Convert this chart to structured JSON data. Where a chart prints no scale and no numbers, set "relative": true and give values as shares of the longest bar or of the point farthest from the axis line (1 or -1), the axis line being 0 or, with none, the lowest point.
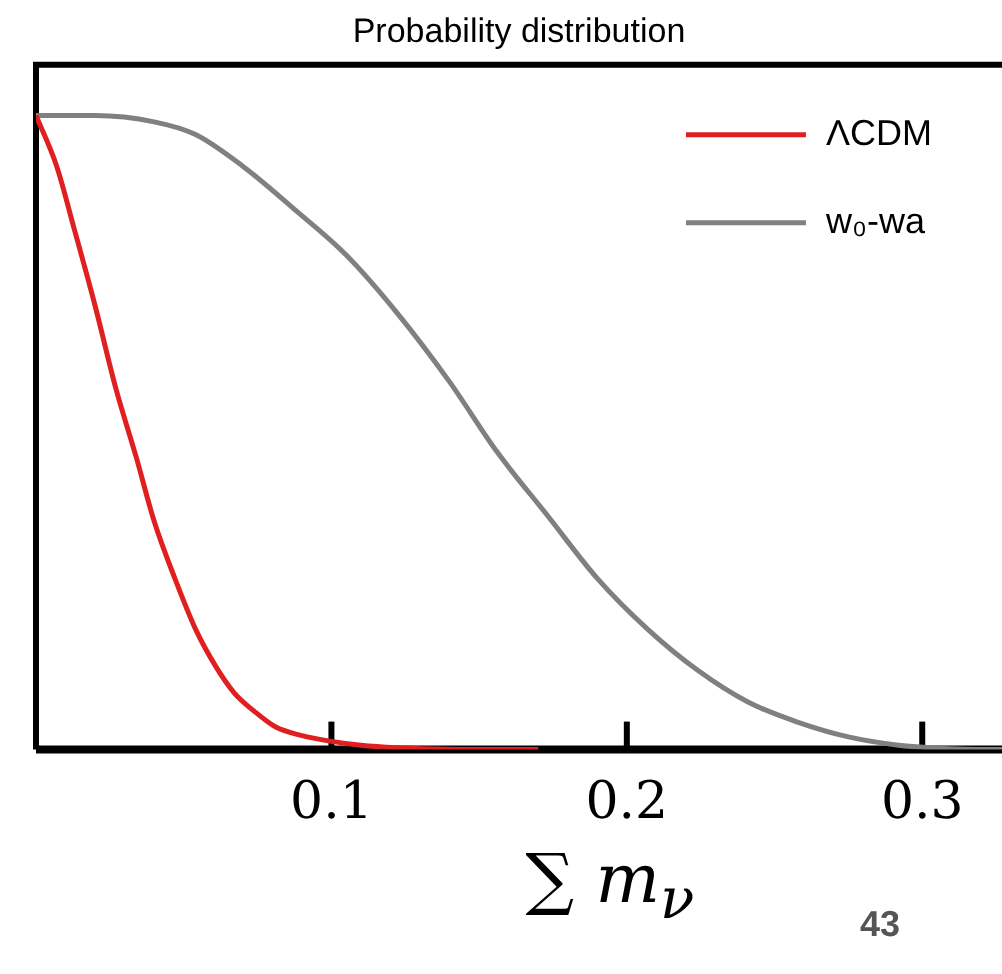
{
  "chart_data": {
    "type": "line",
    "title": "Probability distribution",
    "xlabel": "∑ m$_{ν}$",
    "relative": true,
    "xlim": [
      0,
      0.327
    ],
    "xticks": [
      0.1,
      0.2,
      0.3
    ],
    "grid": false,
    "legend": "top right",
    "marker": "none",
    "line_style": "solid",
    "annotations": [
      "43"
    ],
    "series": [
      {
        "name": "ΛCDM",
        "color": "#e02020",
        "x": [
          0,
          0.007,
          0.013,
          0.02,
          0.027,
          0.034,
          0.04,
          0.047,
          0.054,
          0.061,
          0.067,
          0.074,
          0.081,
          0.09,
          0.1,
          0.11,
          0.122,
          0.135,
          0.149,
          0.17
        ],
        "values": [
          1,
          0.92,
          0.82,
          0.7,
          0.57,
          0.46,
          0.36,
          0.27,
          0.19,
          0.13,
          0.09,
          0.06,
          0.036,
          0.022,
          0.013,
          0.007,
          0.003,
          0.001,
          0,
          0
        ]
      },
      {
        "name": "w₀-wa",
        "color": "#808080",
        "x": [
          0,
          0.02,
          0.04,
          0.054,
          0.07,
          0.088,
          0.105,
          0.122,
          0.14,
          0.156,
          0.173,
          0.19,
          0.207,
          0.224,
          0.241,
          0.258,
          0.275,
          0.292,
          0.312,
          0.327
        ],
        "values": [
          1,
          1,
          0.99,
          0.97,
          0.92,
          0.85,
          0.78,
          0.69,
          0.58,
          0.47,
          0.37,
          0.27,
          0.19,
          0.125,
          0.075,
          0.043,
          0.02,
          0.007,
          0.001,
          0
        ]
      }
    ]
  }
}
